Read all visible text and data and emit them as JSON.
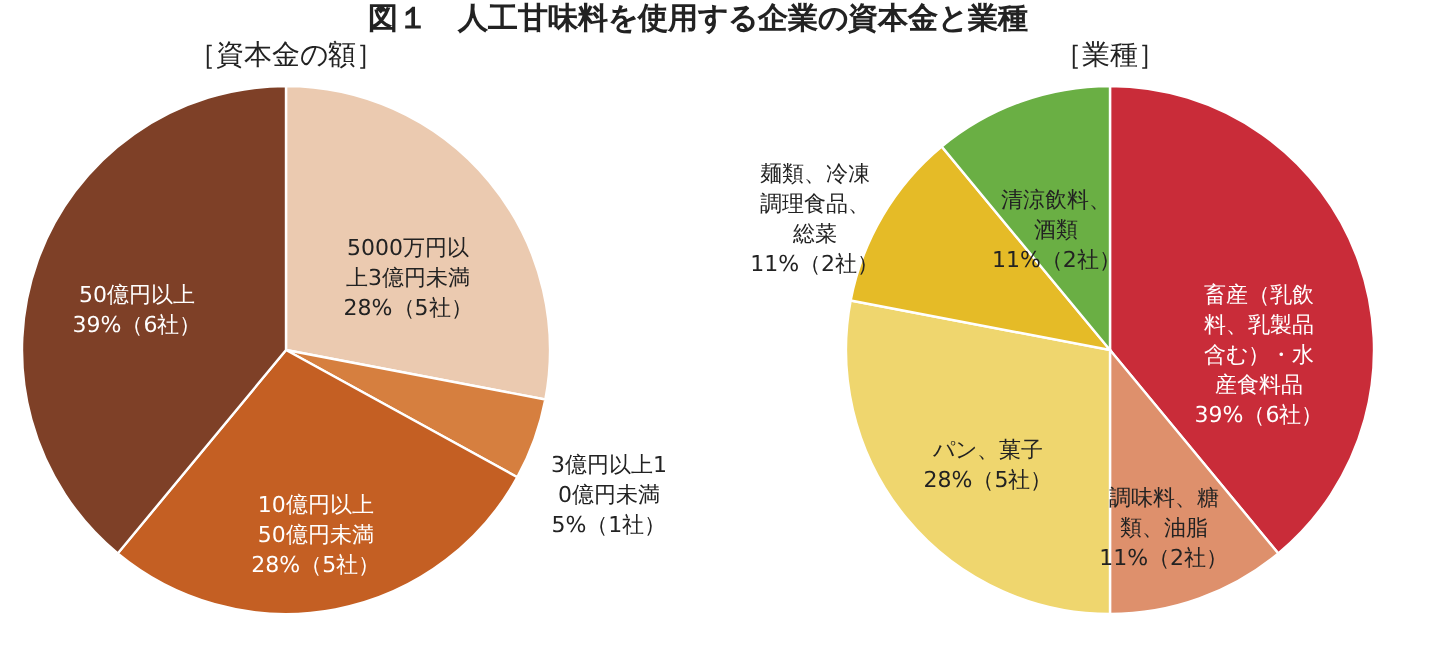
{
  "chart_data": [
    {
      "type": "pie",
      "title": "図１　人工甘味料を使用する企業の資本金と業種",
      "subtitle": "［資本金の額］",
      "categories": [
        "5000万円以上3億円未満",
        "3億円以上10億円未満",
        "10億円以上50億円未満",
        "50億円以上"
      ],
      "values": [
        28,
        5,
        28,
        39
      ],
      "value_labels": [
        "28%（5社）",
        "5%（1社）",
        "28%（5社）",
        "39%（6社）"
      ],
      "colors": [
        "#ebcab0",
        "#d67f3f",
        "#c45f23",
        "#7e4027"
      ]
    },
    {
      "type": "pie",
      "subtitle": "［業種］",
      "categories": [
        "畜産（乳飲料、乳製品含む）・水産食料品",
        "調味料、糖類、油脂",
        "パン、菓子",
        "麺類、冷凍調理食品、総菜",
        "清涼飲料、酒類"
      ],
      "values": [
        39,
        11,
        28,
        11,
        11
      ],
      "value_labels": [
        "39%（6社）",
        "11%（2社）",
        "28%（5社）",
        "11%（2社）",
        "11%（2社）"
      ],
      "colors": [
        "#c92c39",
        "#de906c",
        "#efd66e",
        "#e5bb27",
        "#6aaf44"
      ]
    }
  ]
}
